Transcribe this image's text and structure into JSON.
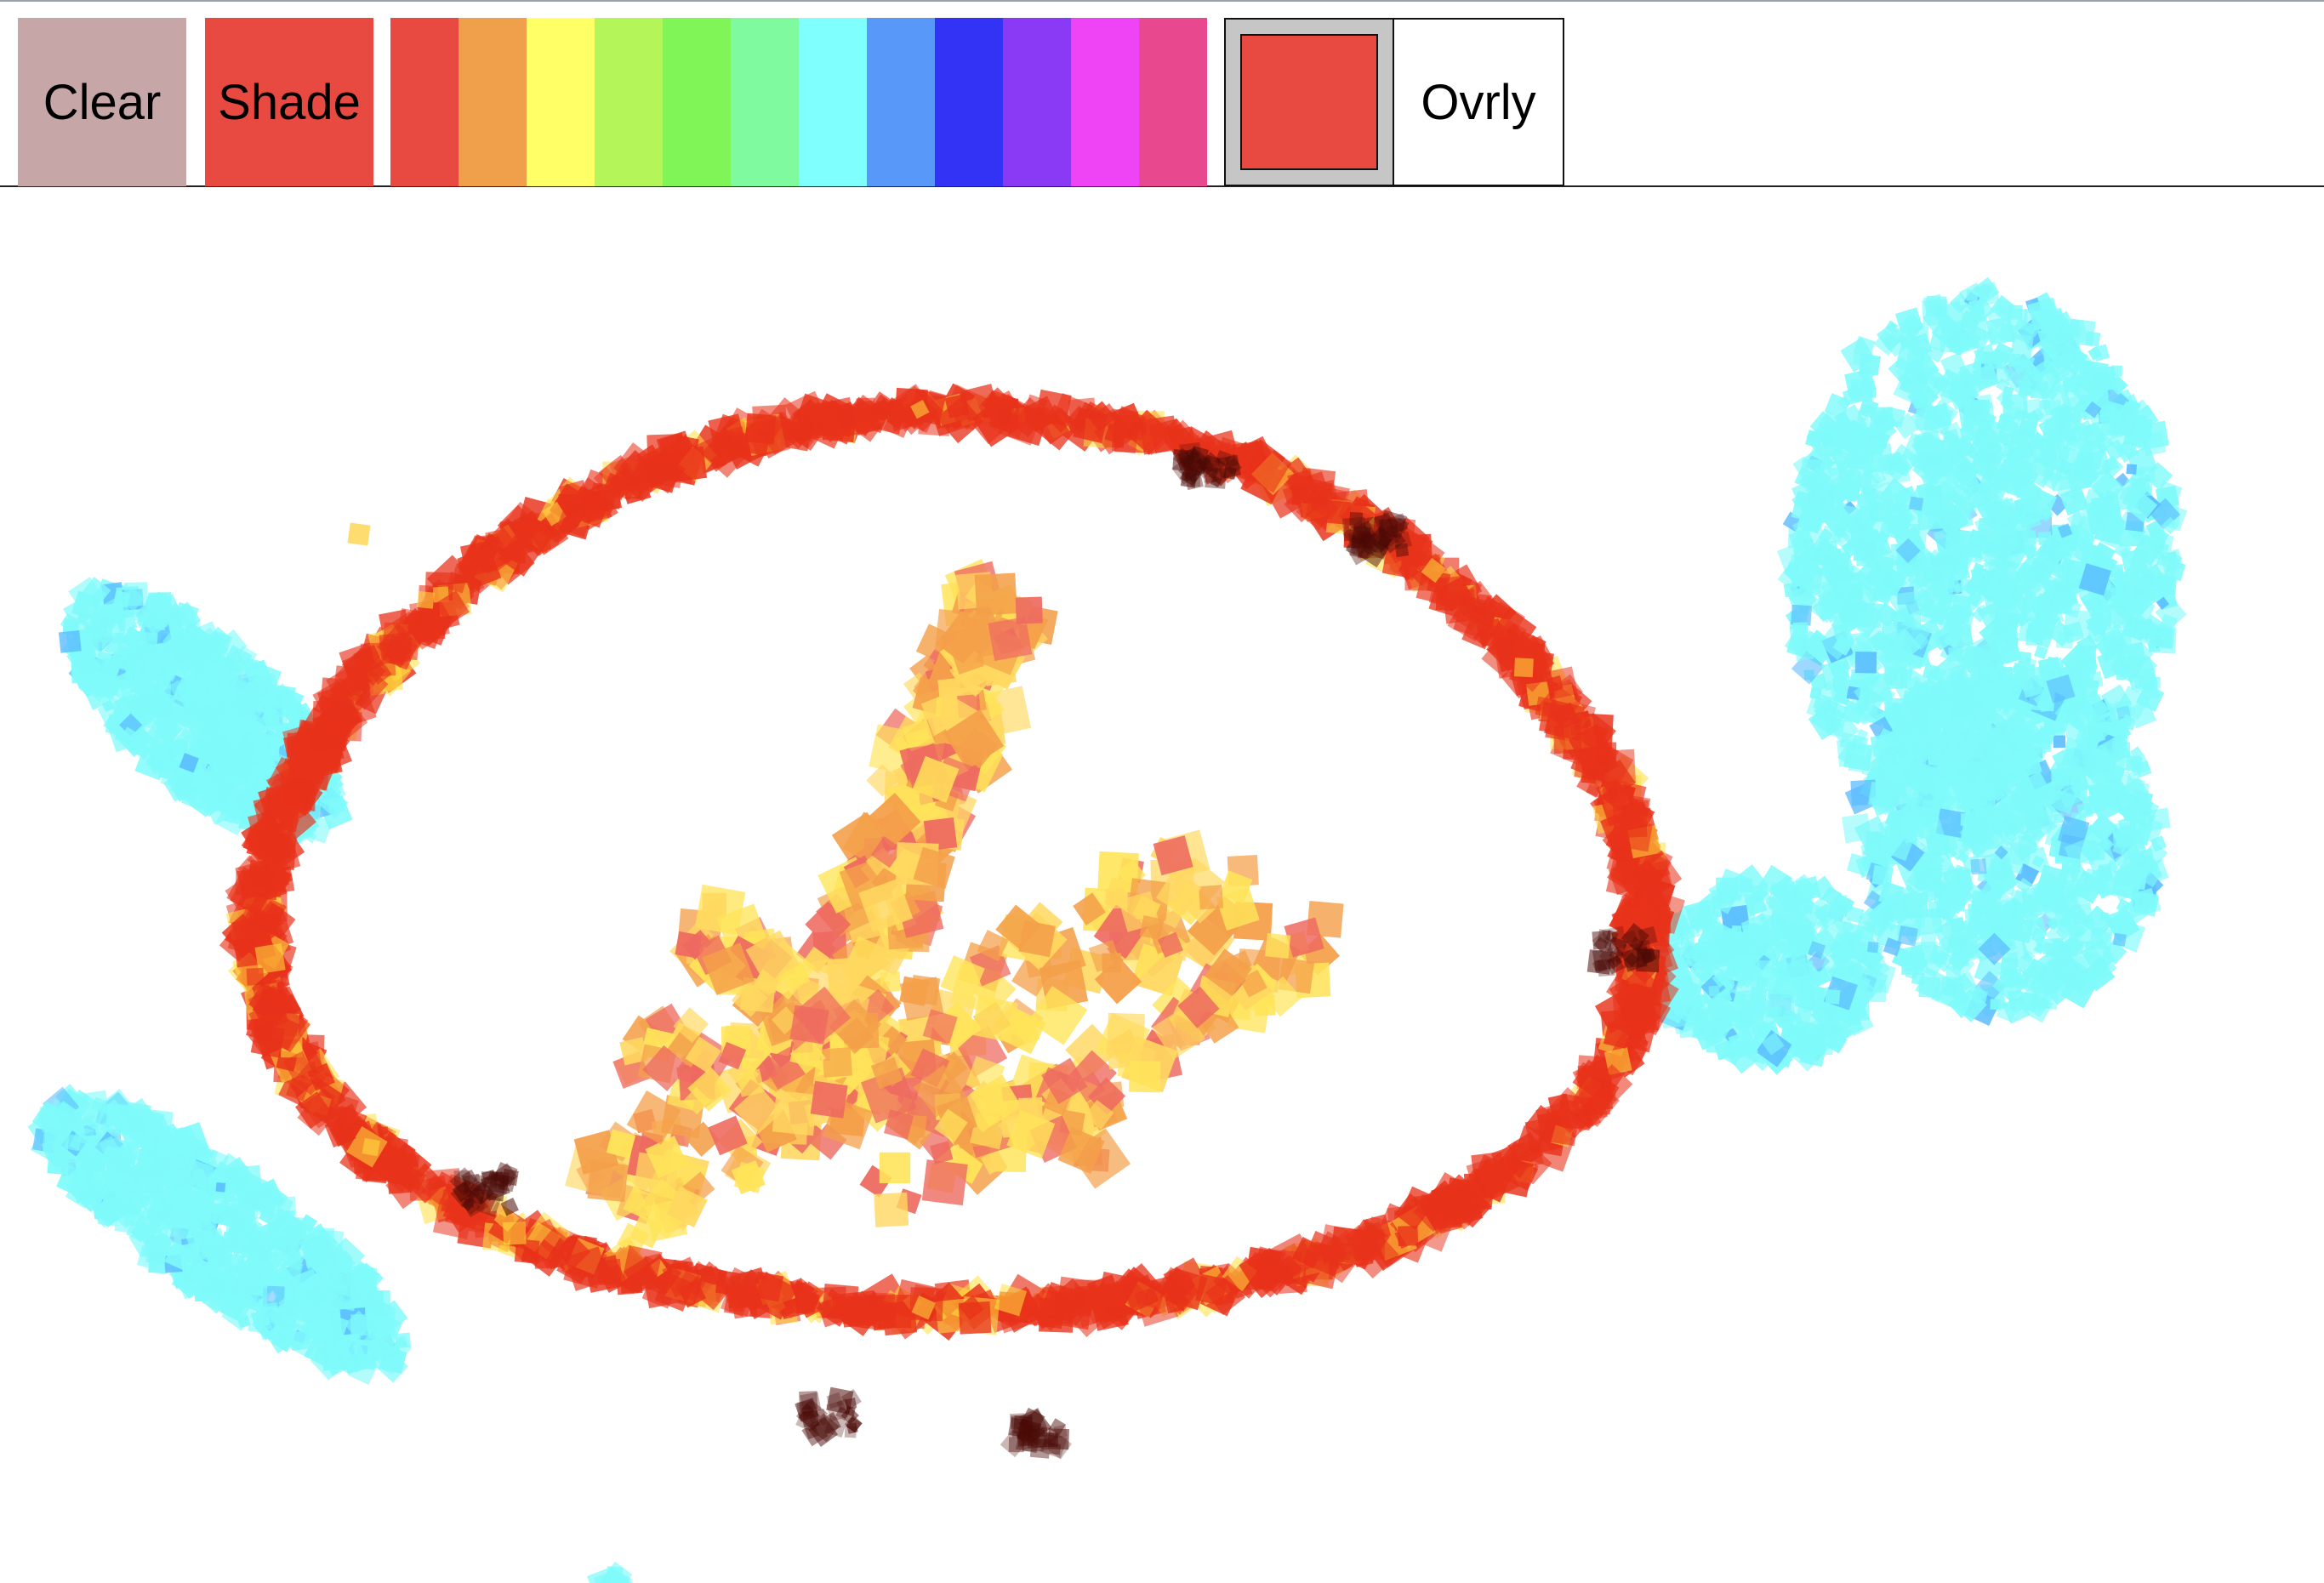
{
  "toolbar": {
    "clear_label": "Clear",
    "shade_label": "Shade",
    "ovrly_label": "Ovrly",
    "clear_bg": "#c6a6a6",
    "shade_bg": "#e84a42",
    "current_color": "#e84a42",
    "palette": [
      "#e84a42",
      "#f0a04a",
      "#ffff66",
      "#b4f55a",
      "#80f558",
      "#80fa9e",
      "#80ffff",
      "#5898f8",
      "#3333f5",
      "#8a3af5",
      "#ee44f5",
      "#e8488e"
    ]
  },
  "canvas": {
    "ring_color": "#e8321a",
    "ring_shadow": "#4a0a06",
    "ring_glow": "#ffe040",
    "inner_colors": [
      "#f4a04a",
      "#ffe45a",
      "#ee6a60",
      "#ffd860"
    ],
    "cyan_fill": "#7ffafa",
    "cyan_accent": "#5bbcff"
  }
}
